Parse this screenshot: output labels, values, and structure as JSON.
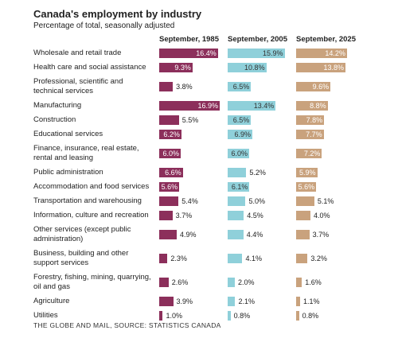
{
  "chart_data": {
    "type": "bar",
    "title": "Canada's employment by industry",
    "subtitle": "Percentage of total, seasonally adjusted",
    "source": "THE GLOBE AND MAIL, SOURCE: STATISTICS CANADA",
    "categories": [
      "Wholesale and retail trade",
      "Health care and social assistance",
      "Professional, scientific and technical services",
      "Manufacturing",
      "Construction",
      "Educational services",
      "Finance, insurance, real estate, rental and leasing",
      "Public administration",
      "Accommodation and food services",
      "Transportation and warehousing",
      "Information, culture and recreation",
      "Other services (except public administration)",
      "Business, building and other support services",
      "Forestry, fishing, mining, quarrying, oil and gas",
      "Agriculture",
      "Utilities"
    ],
    "series": [
      {
        "name": "September, 1985",
        "color": "#8c2f5b",
        "values": [
          16.4,
          9.3,
          3.8,
          16.9,
          5.5,
          6.2,
          6.0,
          6.6,
          5.6,
          5.4,
          3.7,
          4.9,
          2.3,
          2.6,
          3.9,
          1.0
        ],
        "value_labels": [
          "16.4%",
          "9.3%",
          "3.8%",
          "16.9%",
          "5.5%",
          "6.2%",
          "6.0%",
          "6.6%",
          "5.6%",
          "5.4%",
          "3.7%",
          "4.9%",
          "2.3%",
          "2.6%",
          "3.9%",
          "1.0%"
        ]
      },
      {
        "name": "September, 2005",
        "color": "#8fd0da",
        "values": [
          15.9,
          10.8,
          6.5,
          13.4,
          6.5,
          6.9,
          6.0,
          5.2,
          6.1,
          5.0,
          4.5,
          4.4,
          4.1,
          2.0,
          2.1,
          0.8
        ],
        "value_labels": [
          "15.9%",
          "10.8%",
          "6.5%",
          "13.4%",
          "6.5%",
          "6.9%",
          "6.0%",
          "5.2%",
          "6.1%",
          "5.0%",
          "4.5%",
          "4.4%",
          "4.1%",
          "2.0%",
          "2.1%",
          "0.8%"
        ]
      },
      {
        "name": "September, 2025",
        "color": "#c9a27d",
        "values": [
          14.2,
          13.8,
          9.6,
          8.8,
          7.8,
          7.7,
          7.2,
          5.9,
          5.6,
          5.1,
          4.0,
          3.7,
          3.2,
          1.6,
          1.1,
          0.8
        ],
        "value_labels": [
          "14.2%",
          "13.8%",
          "9.6%",
          "8.8%",
          "7.8%",
          "7.7%",
          "7.2%",
          "5.9%",
          "5.6%",
          "5.1%",
          "4.0%",
          "3.7%",
          "3.2%",
          "1.6%",
          "1.1%",
          "0.8%"
        ]
      }
    ]
  }
}
